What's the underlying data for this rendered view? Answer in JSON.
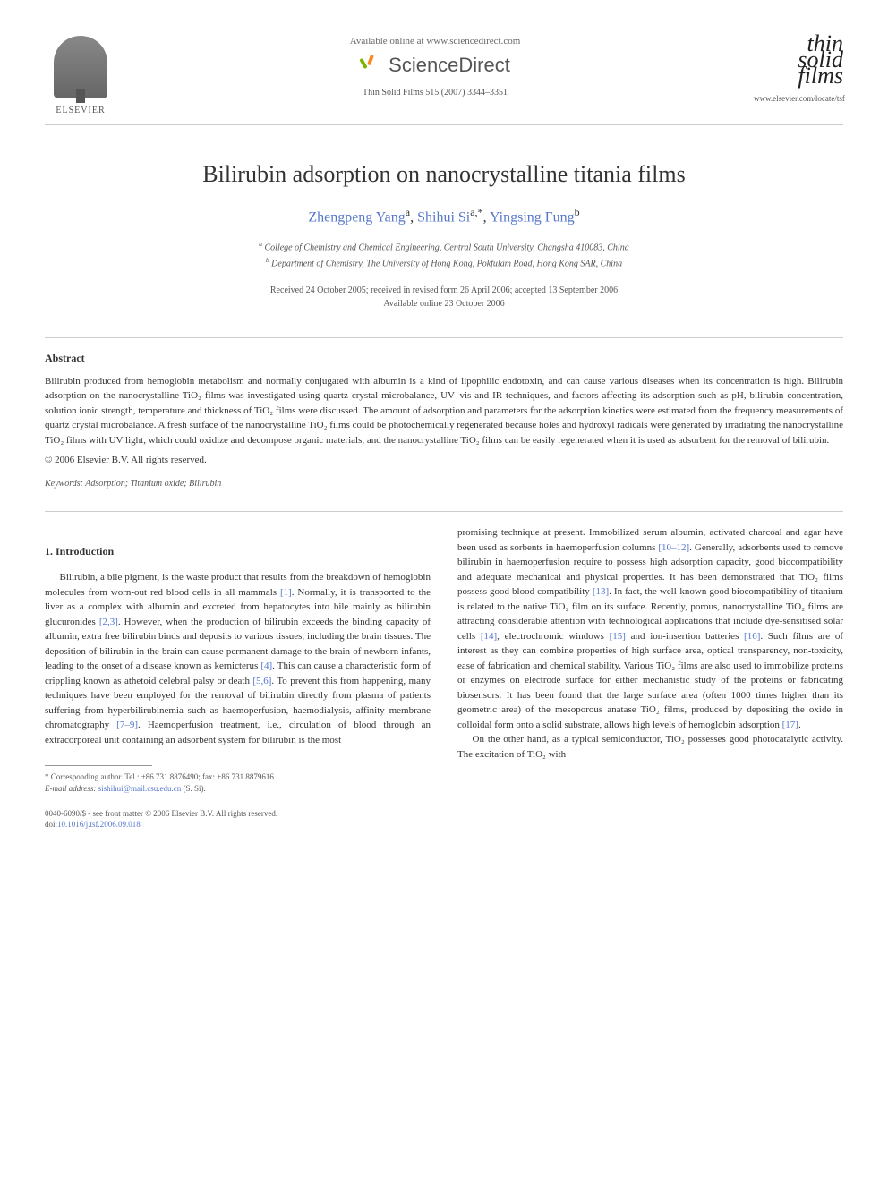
{
  "header": {
    "elsevier_label": "ELSEVIER",
    "available_online": "Available online at www.sciencedirect.com",
    "sciencedirect": "ScienceDirect",
    "citation": "Thin Solid Films 515 (2007) 3344–3351",
    "journal_logo_line1": "thin",
    "journal_logo_line2": "solid",
    "journal_logo_line3": "films",
    "journal_url": "www.elsevier.com/locate/tsf"
  },
  "title": "Bilirubin adsorption on nanocrystalline titania films",
  "authors": {
    "a1_name": "Zhengpeng Yang",
    "a1_sup": "a",
    "a2_name": "Shihui Si",
    "a2_sup": "a,",
    "a2_mark": "*",
    "a3_name": "Yingsing Fung",
    "a3_sup": "b"
  },
  "affiliations": {
    "a": "College of Chemistry and Chemical Engineering, Central South University, Changsha 410083, China",
    "b": "Department of Chemistry, The University of Hong Kong, Pokfulam Road, Hong Kong SAR, China"
  },
  "dates": {
    "received": "Received 24 October 2005; received in revised form 26 April 2006; accepted 13 September 2006",
    "online": "Available online 23 October 2006"
  },
  "abstract": {
    "heading": "Abstract",
    "text": "Bilirubin produced from hemoglobin metabolism and normally conjugated with albumin is a kind of lipophilic endotoxin, and can cause various diseases when its concentration is high. Bilirubin adsorption on the nanocrystalline TiO₂ films was investigated using quartz crystal microbalance, UV–vis and IR techniques, and factors affecting its adsorption such as pH, bilirubin concentration, solution ionic strength, temperature and thickness of TiO₂ films were discussed. The amount of adsorption and parameters for the adsorption kinetics were estimated from the frequency measurements of quartz crystal microbalance. A fresh surface of the nanocrystalline TiO₂ films could be photochemically regenerated because holes and hydroxyl radicals were generated by irradiating the nanocrystalline TiO₂ films with UV light, which could oxidize and decompose organic materials, and the nanocrystalline TiO₂ films can be easily regenerated when it is used as adsorbent for the removal of bilirubin.",
    "copyright": "© 2006 Elsevier B.V. All rights reserved."
  },
  "keywords": {
    "label": "Keywords:",
    "text": "Adsorption; Titanium oxide; Bilirubin"
  },
  "section1": {
    "heading": "1. Introduction",
    "col1_p1_a": "Bilirubin, a bile pigment, is the waste product that results from the breakdown of hemoglobin molecules from worn-out red blood cells in all mammals ",
    "ref1": "[1]",
    "col1_p1_b": ". Normally, it is transported to the liver as a complex with albumin and excreted from hepatocytes into bile mainly as bilirubin glucuronides ",
    "ref23": "[2,3]",
    "col1_p1_c": ". However, when the production of bilirubin exceeds the binding capacity of albumin, extra free bilirubin binds and deposits to various tissues, including the brain tissues. The deposition of bilirubin in the brain can cause permanent damage to the brain of newborn infants, leading to the onset of a disease known as kernicterus ",
    "ref4": "[4]",
    "col1_p1_d": ". This can cause a characteristic form of crippling known as athetoid celebral palsy or death ",
    "ref56": "[5,6]",
    "col1_p1_e": ". To prevent this from happening, many techniques have been employed for the removal of bilirubin directly from plasma of patients suffering from hyperbilirubinemia such as haemoperfusion, haemodialysis, affinity membrane chromatography ",
    "ref79": "[7–9]",
    "col1_p1_f": ". Haemoperfusion treatment, i.e., circulation of blood through an extracorporeal unit containing an adsorbent system for bilirubin is the most",
    "col2_p1_a": "promising technique at present. Immobilized serum albumin, activated charcoal and agar have been used as sorbents in haemoperfusion columns ",
    "ref1012": "[10–12]",
    "col2_p1_b": ". Generally, adsorbents used to remove bilirubin in haemoperfusion require to possess high adsorption capacity, good biocompatibility and adequate mechanical and physical properties. It has been demonstrated that TiO₂ films possess good blood compatibility ",
    "ref13": "[13]",
    "col2_p1_c": ". In fact, the well-known good biocompatibility of titanium is related to the native TiO₂ film on its surface. Recently, porous, nanocrystalline TiO₂ films are attracting considerable attention with technological applications that include dye-sensitised solar cells ",
    "ref14": "[14]",
    "col2_p1_d": ", electrochromic windows ",
    "ref15": "[15]",
    "col2_p1_e": " and ion-insertion batteries ",
    "ref16": "[16]",
    "col2_p1_f": ". Such films are of interest as they can combine properties of high surface area, optical transparency, non-toxicity, ease of fabrication and chemical stability. Various TiO₂ films are also used to immobilize proteins or enzymes on electrode surface for either mechanistic study of the proteins or fabricating biosensors. It has been found that the large surface area (often 1000 times higher than its geometric area) of the mesoporous anatase TiO₂ films, produced by depositing the oxide in colloidal form onto a solid substrate, allows high levels of hemoglobin adsorption ",
    "ref17": "[17]",
    "col2_p1_g": ".",
    "col2_p2": "On the other hand, as a typical semiconductor, TiO₂ possesses good photocatalytic activity. The excitation of TiO₂ with"
  },
  "footnote": {
    "corr_label": "* Corresponding author. Tel.: +86 731 8876490; fax: +86 731 8879616.",
    "email_label": "E-mail address:",
    "email": "sishihui@mail.csu.edu.cn",
    "email_suffix": "(S. Si)."
  },
  "footer": {
    "issn": "0040-6090/$ - see front matter © 2006 Elsevier B.V. All rights reserved.",
    "doi_label": "doi:",
    "doi": "10.1016/j.tsf.2006.09.018"
  },
  "colors": {
    "text": "#333333",
    "link": "#5577cc",
    "muted": "#555555",
    "rule": "#cccccc"
  }
}
